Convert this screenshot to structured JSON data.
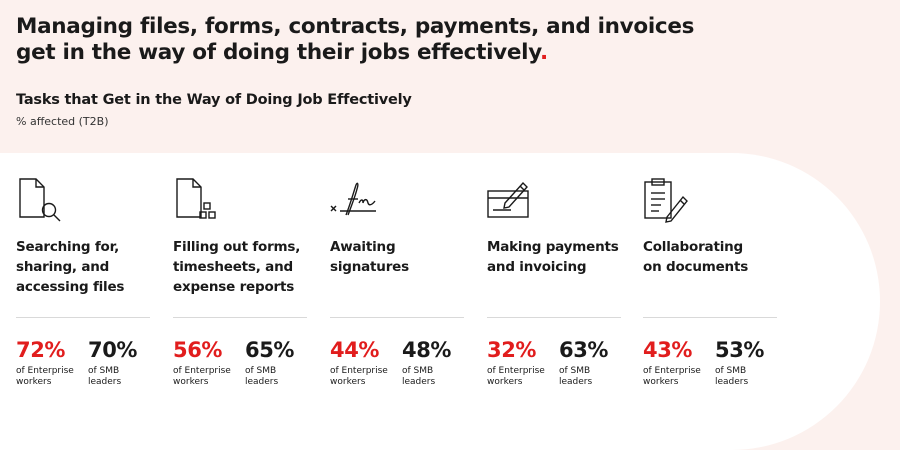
{
  "headline": "Managing files, forms, contracts, payments, and invoices get in the way of doing their jobs effectively",
  "headline_end": ".",
  "chart_data": {
    "type": "table",
    "title": "Tasks that Get in the Way of Doing Job Effectively",
    "subtitle": "% affected (T2B)",
    "series": [
      {
        "name_line1": "of Enterprise",
        "name_line2": "workers"
      },
      {
        "name_line1": "of SMB",
        "name_line2": "leaders"
      }
    ],
    "categories": [
      {
        "lines": [
          "Searching for,",
          "sharing, and",
          "accessing files"
        ],
        "icon": "document-search-icon",
        "enterprise": "72%",
        "smb": "70%"
      },
      {
        "lines": [
          "Filling out forms,",
          "timesheets, and",
          "expense reports"
        ],
        "icon": "document-form-icon",
        "enterprise": "56%",
        "smb": "65%"
      },
      {
        "lines": [
          "Awaiting",
          "signatures"
        ],
        "icon": "signature-icon",
        "enterprise": "44%",
        "smb": "48%"
      },
      {
        "lines": [
          "Making payments",
          "and invoicing"
        ],
        "icon": "payment-card-pen-icon",
        "enterprise": "32%",
        "smb": "63%"
      },
      {
        "lines": [
          "Collaborating",
          "on documents"
        ],
        "icon": "clipboard-pen-icon",
        "enterprise": "43%",
        "smb": "53%"
      }
    ]
  },
  "colors": {
    "accent": "#e11d1d",
    "background": "#fcf1ee",
    "panel": "#ffffff",
    "text": "#1a1a1a"
  }
}
